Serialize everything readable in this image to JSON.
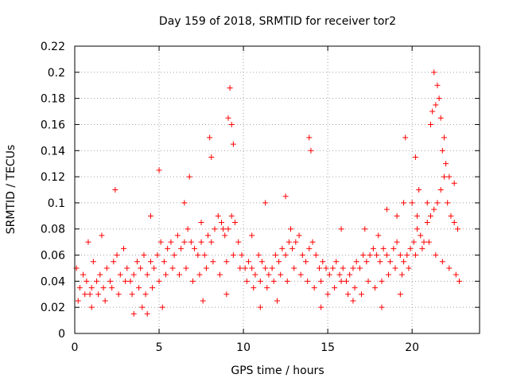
{
  "chart_data": {
    "type": "scatter",
    "title": "Day 159 of 2018, SRMTID for receiver tor2",
    "xlabel": "GPS time / hours",
    "ylabel": "SRMTID / TECUs",
    "xlim": [
      0,
      24
    ],
    "ylim": [
      0,
      0.22
    ],
    "xticks": [
      0,
      5,
      10,
      15,
      20
    ],
    "yticks": [
      0,
      0.02,
      0.04,
      0.06,
      0.08,
      0.1,
      0.12,
      0.14,
      0.16,
      0.18,
      0.2,
      0.22
    ],
    "xtick_labels": [
      "0",
      "5",
      "10",
      "15",
      "20"
    ],
    "ytick_labels": [
      "0",
      "0.02",
      "0.04",
      "0.06",
      "0.08",
      "0.1",
      "0.12",
      "0.14",
      "0.16",
      "0.18",
      "0.2",
      "0.22"
    ],
    "grid": true,
    "marker": "+",
    "color": "#ff0000",
    "series": [
      {
        "x": [
          0.1,
          0.3,
          0.5,
          0.7,
          0.9,
          1.1,
          1.3,
          1.5,
          1.7,
          1.9,
          2.1,
          2.3,
          2.5,
          2.7,
          2.9,
          3.1,
          3.3,
          3.5,
          3.7,
          3.9,
          4.1,
          4.3,
          4.5,
          4.7,
          4.9,
          5.1,
          5.3,
          5.5,
          5.7,
          5.9,
          6.1,
          6.3,
          6.5,
          6.7,
          6.9,
          7.1,
          7.3,
          7.5,
          7.7,
          7.9,
          8.1,
          8.3,
          8.5,
          8.7,
          8.9,
          9.1,
          9.3,
          9.5,
          9.7,
          9.9,
          10.1,
          10.3,
          10.5,
          10.7,
          10.9,
          11.1,
          11.3,
          11.5,
          11.7,
          11.9,
          12.1,
          12.3,
          12.5,
          12.7,
          12.9,
          13.1,
          13.3,
          13.5,
          13.7,
          13.9,
          14.1,
          14.3,
          14.5,
          14.7,
          14.9,
          15.1,
          15.3,
          15.5,
          15.7,
          15.9,
          16.1,
          16.3,
          16.5,
          16.7,
          16.9,
          17.1,
          17.3,
          17.5,
          17.7,
          17.9,
          18.1,
          18.3,
          18.5,
          18.7,
          18.9,
          19.1,
          19.3,
          19.5,
          19.7,
          19.9,
          20.1,
          20.3,
          20.5,
          20.7,
          20.9,
          21.1,
          21.3,
          21.5,
          21.7,
          21.9,
          22.1,
          22.3,
          22.5,
          22.7,
          0.2,
          0.6,
          1.0,
          1.4,
          1.8,
          2.2,
          2.6,
          3.0,
          3.4,
          3.8,
          4.2,
          4.6,
          5.0,
          5.4,
          5.8,
          6.2,
          6.6,
          7.0,
          7.4,
          7.8,
          8.2,
          8.6,
          9.0,
          9.4,
          9.8,
          10.2,
          10.6,
          11.0,
          11.4,
          11.8,
          12.2,
          12.6,
          13.0,
          13.4,
          13.8,
          14.2,
          14.6,
          15.0,
          15.4,
          15.8,
          16.2,
          16.6,
          17.0,
          17.4,
          17.8,
          18.2,
          18.6,
          19.0,
          19.4,
          19.8,
          20.2,
          20.6,
          21.0,
          21.4,
          21.8,
          22.2,
          22.6,
          8.0,
          8.1,
          9.1,
          9.2,
          9.3,
          9.4,
          13.9,
          14.0,
          19.6,
          20.2,
          21.1,
          21.2,
          21.3,
          21.4,
          21.5,
          21.6,
          21.7,
          21.8,
          21.9,
          22.0,
          22.2,
          2.4,
          4.5,
          5.0,
          6.5,
          6.8,
          11.3,
          12.5,
          17.2,
          18.5,
          19.1,
          19.5,
          20.0,
          20.4,
          20.9,
          22.5,
          1.0,
          3.5,
          4.0,
          4.3,
          5.2,
          7.6,
          9.0,
          11.0,
          12.0,
          14.6,
          16.5,
          18.2,
          19.3,
          22.8,
          0.8,
          1.6,
          7.5,
          8.8,
          10.5,
          12.8,
          15.8,
          18.0,
          20.3
        ],
        "y": [
          0.05,
          0.035,
          0.045,
          0.04,
          0.03,
          0.055,
          0.04,
          0.045,
          0.035,
          0.05,
          0.04,
          0.055,
          0.06,
          0.045,
          0.065,
          0.05,
          0.04,
          0.045,
          0.055,
          0.05,
          0.06,
          0.045,
          0.055,
          0.05,
          0.06,
          0.07,
          0.055,
          0.065,
          0.07,
          0.06,
          0.075,
          0.065,
          0.07,
          0.08,
          0.07,
          0.065,
          0.06,
          0.07,
          0.06,
          0.075,
          0.07,
          0.08,
          0.09,
          0.085,
          0.075,
          0.08,
          0.09,
          0.085,
          0.07,
          0.06,
          0.05,
          0.055,
          0.05,
          0.045,
          0.06,
          0.055,
          0.05,
          0.045,
          0.05,
          0.06,
          0.055,
          0.065,
          0.06,
          0.07,
          0.065,
          0.07,
          0.075,
          0.06,
          0.055,
          0.065,
          0.07,
          0.06,
          0.05,
          0.055,
          0.05,
          0.045,
          0.05,
          0.055,
          0.045,
          0.05,
          0.04,
          0.045,
          0.05,
          0.055,
          0.05,
          0.06,
          0.055,
          0.06,
          0.065,
          0.06,
          0.055,
          0.065,
          0.06,
          0.055,
          0.065,
          0.07,
          0.06,
          0.055,
          0.06,
          0.065,
          0.07,
          0.08,
          0.075,
          0.07,
          0.085,
          0.09,
          0.095,
          0.1,
          0.11,
          0.12,
          0.1,
          0.09,
          0.085,
          0.08,
          0.025,
          0.03,
          0.035,
          0.03,
          0.025,
          0.035,
          0.03,
          0.04,
          0.03,
          0.035,
          0.03,
          0.035,
          0.04,
          0.045,
          0.05,
          0.045,
          0.05,
          0.04,
          0.045,
          0.05,
          0.055,
          0.045,
          0.055,
          0.06,
          0.05,
          0.04,
          0.035,
          0.04,
          0.035,
          0.04,
          0.045,
          0.04,
          0.05,
          0.045,
          0.04,
          0.035,
          0.04,
          0.03,
          0.035,
          0.04,
          0.03,
          0.035,
          0.03,
          0.04,
          0.035,
          0.04,
          0.045,
          0.05,
          0.045,
          0.05,
          0.06,
          0.065,
          0.07,
          0.06,
          0.055,
          0.05,
          0.045,
          0.15,
          0.135,
          0.165,
          0.188,
          0.16,
          0.145,
          0.15,
          0.14,
          0.15,
          0.135,
          0.16,
          0.17,
          0.2,
          0.175,
          0.19,
          0.18,
          0.165,
          0.14,
          0.15,
          0.13,
          0.12,
          0.11,
          0.09,
          0.125,
          0.1,
          0.12,
          0.1,
          0.105,
          0.08,
          0.095,
          0.09,
          0.1,
          0.1,
          0.11,
          0.1,
          0.115,
          0.02,
          0.015,
          0.02,
          0.015,
          0.02,
          0.025,
          0.03,
          0.02,
          0.025,
          0.02,
          0.025,
          0.02,
          0.03,
          0.04,
          0.07,
          0.075,
          0.085,
          0.08,
          0.075,
          0.08,
          0.08,
          0.075,
          0.09
        ]
      }
    ]
  }
}
